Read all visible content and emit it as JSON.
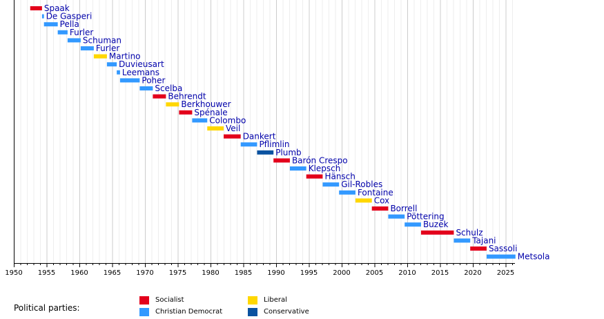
{
  "chart_data": {
    "type": "bar",
    "orientation": "horizontal-timeline",
    "x_ticks": [
      "1950",
      "1955",
      "1960",
      "1965",
      "1970",
      "1975",
      "1980",
      "1985",
      "1990",
      "1995",
      "2000",
      "2005",
      "2010",
      "2015",
      "2020",
      "2025"
    ],
    "xlim": [
      1950,
      2026.5
    ],
    "grid": true,
    "party_colors": {
      "Socialist": "#e3001b",
      "Christian Democrat": "#3399ff",
      "Liberal": "#ffd700",
      "Conservative": "#0a52a0"
    },
    "bars": [
      {
        "label": "Spaak",
        "start": 1952.5,
        "end": 1954.3,
        "party": "Socialist"
      },
      {
        "label": "De Gasperi",
        "start": 1954.3,
        "end": 1954.6,
        "party": "Christian Democrat"
      },
      {
        "label": "Pella",
        "start": 1954.6,
        "end": 1956.7,
        "party": "Christian Democrat"
      },
      {
        "label": "Furler",
        "start": 1956.7,
        "end": 1958.2,
        "party": "Christian Democrat"
      },
      {
        "label": "Schuman",
        "start": 1958.2,
        "end": 1960.2,
        "party": "Christian Democrat"
      },
      {
        "label": "Furler",
        "start": 1960.2,
        "end": 1962.2,
        "party": "Christian Democrat"
      },
      {
        "label": "Martino",
        "start": 1962.2,
        "end": 1964.2,
        "party": "Liberal"
      },
      {
        "label": "Duvieusart",
        "start": 1964.2,
        "end": 1965.7,
        "party": "Christian Democrat"
      },
      {
        "label": "Leemans",
        "start": 1965.7,
        "end": 1966.2,
        "party": "Christian Democrat"
      },
      {
        "label": "Poher",
        "start": 1966.2,
        "end": 1969.2,
        "party": "Christian Democrat"
      },
      {
        "label": "Scelba",
        "start": 1969.2,
        "end": 1971.2,
        "party": "Christian Democrat"
      },
      {
        "label": "Behrendt",
        "start": 1971.2,
        "end": 1973.2,
        "party": "Socialist"
      },
      {
        "label": "Berkhouwer",
        "start": 1973.2,
        "end": 1975.2,
        "party": "Liberal"
      },
      {
        "label": "Spénale",
        "start": 1975.2,
        "end": 1977.2,
        "party": "Socialist"
      },
      {
        "label": "Colombo",
        "start": 1977.2,
        "end": 1979.5,
        "party": "Christian Democrat"
      },
      {
        "label": "Veil",
        "start": 1979.5,
        "end": 1982.0,
        "party": "Liberal"
      },
      {
        "label": "Dankert",
        "start": 1982.0,
        "end": 1984.6,
        "party": "Socialist"
      },
      {
        "label": "Pflimlin",
        "start": 1984.6,
        "end": 1987.1,
        "party": "Christian Democrat"
      },
      {
        "label": "Plumb",
        "start": 1987.1,
        "end": 1989.6,
        "party": "Conservative"
      },
      {
        "label": "Barón Crespo",
        "start": 1989.6,
        "end": 1992.1,
        "party": "Socialist"
      },
      {
        "label": "Klepsch",
        "start": 1992.1,
        "end": 1994.6,
        "party": "Christian Democrat"
      },
      {
        "label": "Hänsch",
        "start": 1994.6,
        "end": 1997.1,
        "party": "Socialist"
      },
      {
        "label": "Gil-Robles",
        "start": 1997.1,
        "end": 1999.6,
        "party": "Christian Democrat"
      },
      {
        "label": "Fontaine",
        "start": 1999.6,
        "end": 2002.1,
        "party": "Christian Democrat"
      },
      {
        "label": "Cox",
        "start": 2002.1,
        "end": 2004.6,
        "party": "Liberal"
      },
      {
        "label": "Borrell",
        "start": 2004.6,
        "end": 2007.1,
        "party": "Socialist"
      },
      {
        "label": "Pöttering",
        "start": 2007.1,
        "end": 2009.6,
        "party": "Christian Democrat"
      },
      {
        "label": "Buzek",
        "start": 2009.6,
        "end": 2012.1,
        "party": "Christian Democrat"
      },
      {
        "label": "Schulz",
        "start": 2012.1,
        "end": 2017.1,
        "party": "Socialist"
      },
      {
        "label": "Tajani",
        "start": 2017.1,
        "end": 2019.6,
        "party": "Christian Democrat"
      },
      {
        "label": "Sassoli",
        "start": 2019.6,
        "end": 2022.1,
        "party": "Socialist"
      },
      {
        "label": "Metsola",
        "start": 2022.1,
        "end": 2026.5,
        "party": "Christian Democrat"
      }
    ]
  },
  "legend": {
    "title": "Political parties:",
    "items": [
      {
        "label": "Socialist",
        "color": "#e3001b"
      },
      {
        "label": "Liberal",
        "color": "#ffd700"
      },
      {
        "label": "Christian Democrat",
        "color": "#3399ff"
      },
      {
        "label": "Conservative",
        "color": "#0a52a0"
      }
    ]
  }
}
